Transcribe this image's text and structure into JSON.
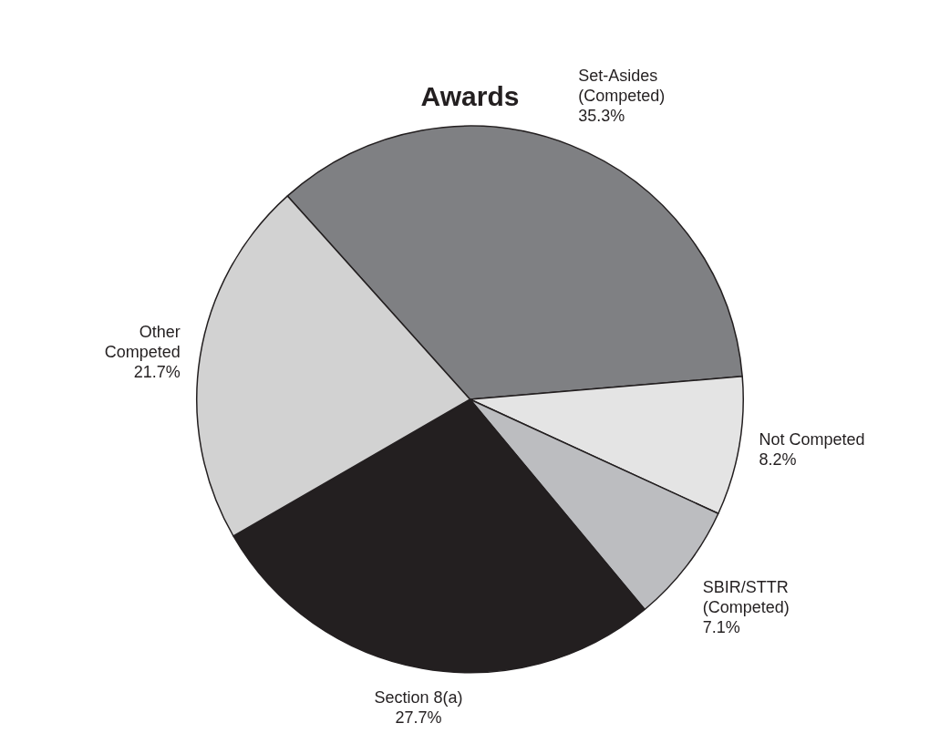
{
  "chart_data": {
    "type": "pie",
    "title": "Awards",
    "categories": [
      "Set-Asides\n(Competed)",
      "Not Competed",
      "SBIR/STTR\n(Competed)",
      "Section 8(a)",
      "Other\nCompeted"
    ],
    "values": [
      35.3,
      8.2,
      7.1,
      27.7,
      21.7
    ],
    "value_labels": [
      "35.3%",
      "8.2%",
      "7.1%",
      "27.7%",
      "21.7%"
    ],
    "colors": [
      "#7f8083",
      "#e4e4e4",
      "#bcbdc0",
      "#231f20",
      "#d2d2d2"
    ],
    "legend": false
  }
}
